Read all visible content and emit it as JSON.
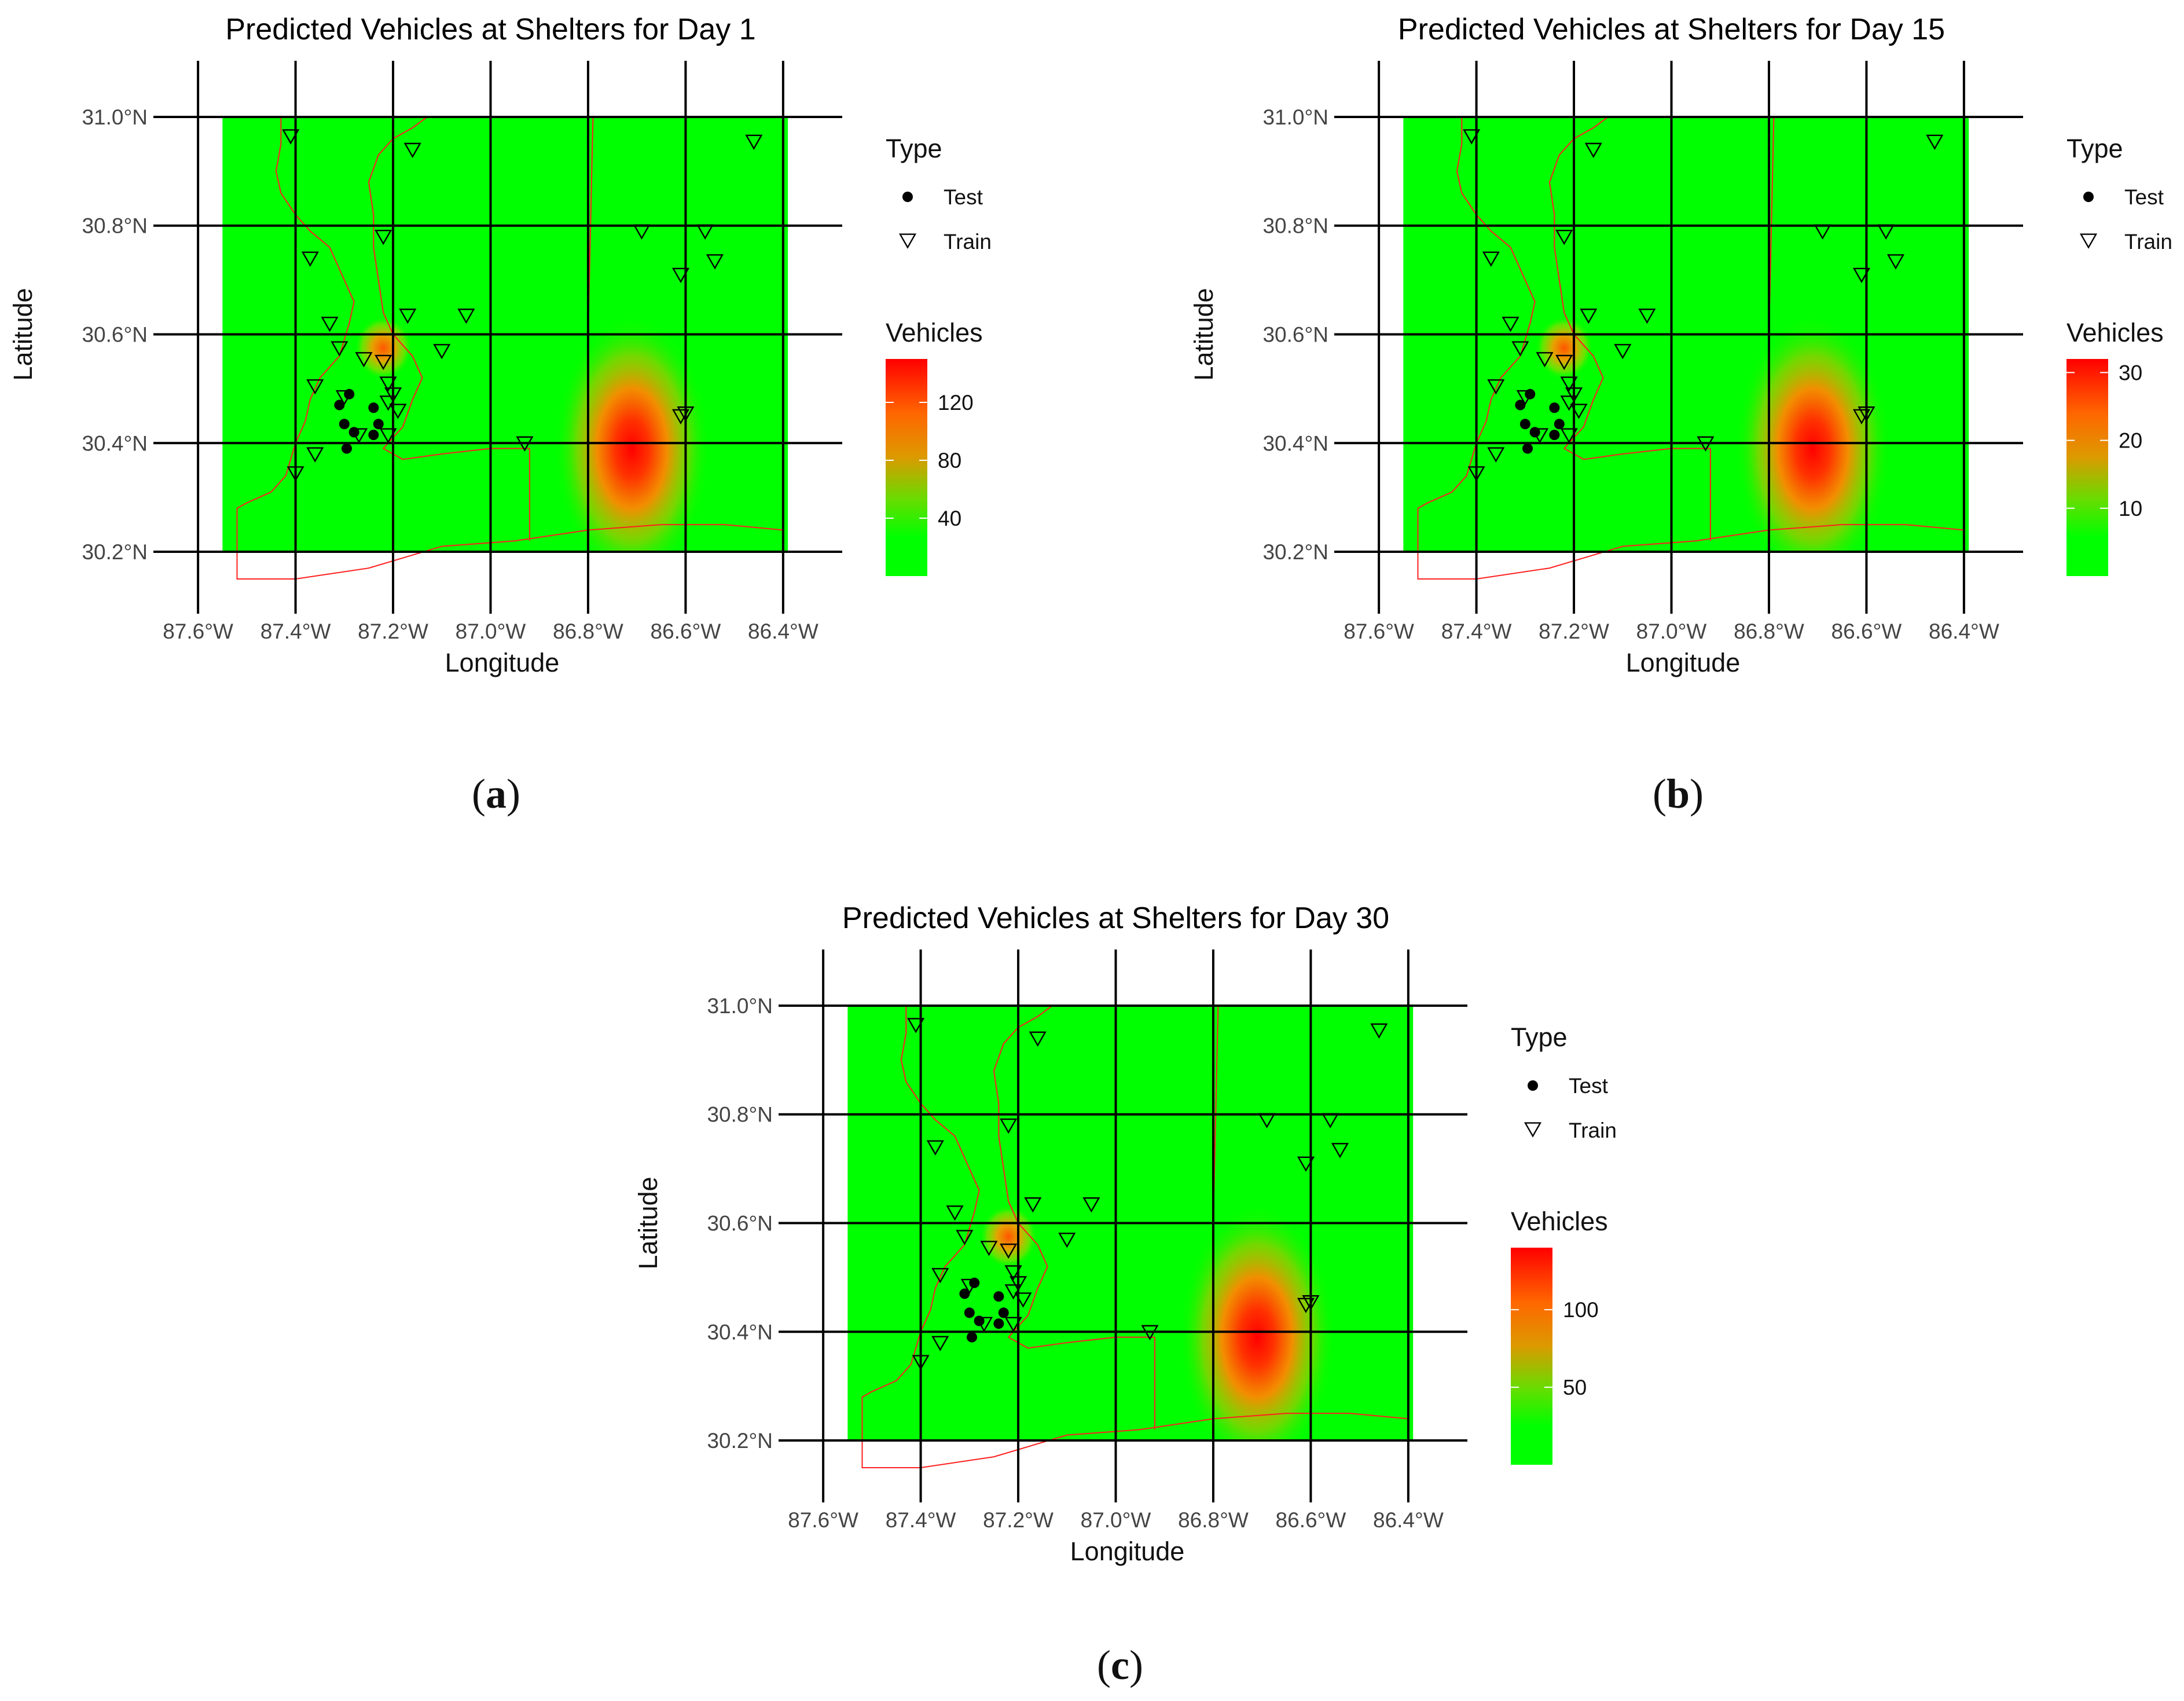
{
  "axis": {
    "xlabel": "Longitude",
    "ylabel": "Latitude",
    "xticks": [
      {
        "value": -87.6,
        "label": "87.6°W"
      },
      {
        "value": -87.4,
        "label": "87.4°W"
      },
      {
        "value": -87.2,
        "label": "87.2°W"
      },
      {
        "value": -87.0,
        "label": "87.0°W"
      },
      {
        "value": -86.8,
        "label": "86.8°W"
      },
      {
        "value": -86.6,
        "label": "86.6°W"
      },
      {
        "value": -86.4,
        "label": "86.4°W"
      }
    ],
    "yticks": [
      {
        "value": 30.2,
        "label": "30.2°N"
      },
      {
        "value": 30.4,
        "label": "30.4°N"
      },
      {
        "value": 30.6,
        "label": "30.6°N"
      },
      {
        "value": 30.8,
        "label": "30.8°N"
      },
      {
        "value": 31.0,
        "label": "31.0°N"
      }
    ]
  },
  "legend": {
    "type_title": "Type",
    "test_label": "Test",
    "train_label": "Train",
    "vehicles_title": "Vehicles"
  },
  "colors": {
    "low": "#00ff00",
    "mid": "#ff9900",
    "high": "#ff0000",
    "boundary": "#ff2020"
  },
  "panels": [
    {
      "id": "a",
      "title": "Predicted Vehicles at Shelters for Day 1",
      "caption": "a",
      "color_max": 150,
      "color_ticks": [
        {
          "value": 40,
          "label": "40"
        },
        {
          "value": 80,
          "label": "80"
        },
        {
          "value": 120,
          "label": "120"
        }
      ]
    },
    {
      "id": "b",
      "title": "Predicted Vehicles at Shelters for Day 15",
      "caption": "b",
      "color_max": 32,
      "color_ticks": [
        {
          "value": 10,
          "label": "10"
        },
        {
          "value": 20,
          "label": "20"
        },
        {
          "value": 30,
          "label": "30"
        }
      ]
    },
    {
      "id": "c",
      "title": "Predicted Vehicles at Shelters for Day 30",
      "caption": "c",
      "color_max": 140,
      "color_ticks": [
        {
          "value": 50,
          "label": "50"
        },
        {
          "value": 100,
          "label": "100"
        }
      ]
    }
  ],
  "chart_data": {
    "type": "scatter",
    "description_axes": {
      "xlim": [
        -87.65,
        -86.35
      ],
      "ylim": [
        30.15,
        31.05
      ]
    },
    "prediction_grid_extent": {
      "lon": [
        -87.55,
        -86.39
      ],
      "lat": [
        30.2,
        31.0
      ]
    },
    "hotspots": [
      {
        "lon": -86.71,
        "lat": 30.39,
        "relative_intensity": 1.0
      },
      {
        "lon": -87.22,
        "lat": 30.575,
        "relative_intensity": 0.55
      }
    ],
    "test_points": [
      {
        "lon": -87.29,
        "lat": 30.49
      },
      {
        "lon": -87.31,
        "lat": 30.47
      },
      {
        "lon": -87.3,
        "lat": 30.435
      },
      {
        "lon": -87.24,
        "lat": 30.465
      },
      {
        "lon": -87.23,
        "lat": 30.435
      },
      {
        "lon": -87.28,
        "lat": 30.42
      },
      {
        "lon": -87.24,
        "lat": 30.415
      },
      {
        "lon": -87.295,
        "lat": 30.39
      }
    ],
    "train_points": [
      {
        "lon": -87.41,
        "lat": 30.965
      },
      {
        "lon": -87.16,
        "lat": 30.94
      },
      {
        "lon": -86.46,
        "lat": 30.955
      },
      {
        "lon": -87.37,
        "lat": 30.74
      },
      {
        "lon": -87.22,
        "lat": 30.78
      },
      {
        "lon": -86.69,
        "lat": 30.79
      },
      {
        "lon": -86.56,
        "lat": 30.79
      },
      {
        "lon": -86.61,
        "lat": 30.71
      },
      {
        "lon": -86.54,
        "lat": 30.735
      },
      {
        "lon": -87.33,
        "lat": 30.62
      },
      {
        "lon": -87.17,
        "lat": 30.635
      },
      {
        "lon": -87.05,
        "lat": 30.635
      },
      {
        "lon": -87.31,
        "lat": 30.575
      },
      {
        "lon": -87.26,
        "lat": 30.555
      },
      {
        "lon": -87.22,
        "lat": 30.55
      },
      {
        "lon": -87.1,
        "lat": 30.57
      },
      {
        "lon": -87.36,
        "lat": 30.505
      },
      {
        "lon": -87.21,
        "lat": 30.51
      },
      {
        "lon": -87.2,
        "lat": 30.49
      },
      {
        "lon": -87.21,
        "lat": 30.475
      },
      {
        "lon": -87.19,
        "lat": 30.46
      },
      {
        "lon": -87.3,
        "lat": 30.485
      },
      {
        "lon": -87.27,
        "lat": 30.415
      },
      {
        "lon": -87.21,
        "lat": 30.415
      },
      {
        "lon": -87.36,
        "lat": 30.38
      },
      {
        "lon": -87.4,
        "lat": 30.345
      },
      {
        "lon": -86.93,
        "lat": 30.4
      },
      {
        "lon": -86.61,
        "lat": 30.45
      },
      {
        "lon": -86.6,
        "lat": 30.455
      }
    ],
    "boundaries": {
      "state_line": [
        [
          -87.43,
          31.0
        ],
        [
          -86.39,
          31.0
        ]
      ],
      "west_line": [
        [
          -87.43,
          31.0
        ],
        [
          -87.43,
          30.95
        ],
        [
          -87.44,
          30.9
        ],
        [
          -87.43,
          30.86
        ],
        [
          -87.4,
          30.82
        ],
        [
          -87.37,
          30.79
        ],
        [
          -87.33,
          30.76
        ],
        [
          -87.3,
          30.7
        ],
        [
          -87.28,
          30.66
        ],
        [
          -87.29,
          30.62
        ],
        [
          -87.31,
          30.56
        ],
        [
          -87.35,
          30.52
        ],
        [
          -87.37,
          30.48
        ],
        [
          -87.38,
          30.44
        ],
        [
          -87.4,
          30.4
        ],
        [
          -87.42,
          30.34
        ],
        [
          -87.45,
          30.31
        ],
        [
          -87.5,
          30.29
        ],
        [
          -87.52,
          30.28
        ],
        [
          -87.52,
          30.15
        ],
        [
          -87.4,
          30.15
        ],
        [
          -87.25,
          30.17
        ],
        [
          -87.1,
          30.21
        ],
        [
          -86.95,
          30.22
        ],
        [
          -86.8,
          30.24
        ],
        [
          -86.65,
          30.25
        ],
        [
          -86.52,
          30.25
        ],
        [
          -86.4,
          30.24
        ]
      ],
      "river": [
        [
          -87.13,
          31.0
        ],
        [
          -87.16,
          30.98
        ],
        [
          -87.2,
          30.96
        ],
        [
          -87.23,
          30.93
        ],
        [
          -87.25,
          30.88
        ],
        [
          -87.24,
          30.82
        ],
        [
          -87.24,
          30.76
        ],
        [
          -87.23,
          30.7
        ],
        [
          -87.22,
          30.64
        ],
        [
          -87.2,
          30.6
        ],
        [
          -87.16,
          30.56
        ],
        [
          -87.14,
          30.52
        ],
        [
          -87.16,
          30.48
        ],
        [
          -87.18,
          30.43
        ],
        [
          -87.22,
          30.39
        ],
        [
          -87.18,
          30.37
        ],
        [
          -87.1,
          30.38
        ],
        [
          -87.0,
          30.39
        ],
        [
          -86.92,
          30.39
        ]
      ],
      "county_line_ok": [
        [
          -86.92,
          30.39
        ],
        [
          -86.92,
          30.22
        ]
      ],
      "county_line_fl": [
        [
          -86.79,
          31.0
        ],
        [
          -86.8,
          30.6
        ],
        [
          -86.8,
          30.4
        ],
        [
          -86.8,
          30.24
        ]
      ]
    }
  }
}
